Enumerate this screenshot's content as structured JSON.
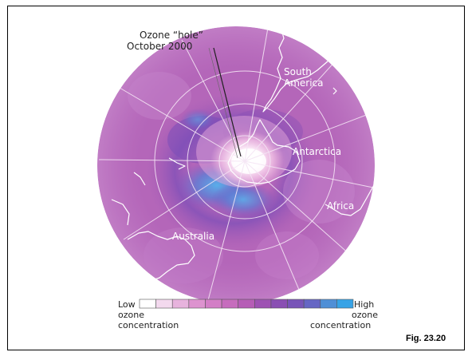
{
  "figure_label": "Fig. 23.20",
  "callout": {
    "line1": "Ozone “hole”",
    "line2": "October 2000"
  },
  "regions": {
    "south_america_1": "South",
    "south_america_2": "America",
    "antarctica": "Antarctica",
    "africa": "Africa",
    "australia": "Australia"
  },
  "legend": {
    "low": "Low",
    "high": "High",
    "ozone_left": "ozone",
    "ozone_right": "ozone",
    "concentration_left": "concentration",
    "concentration_right": "concentration",
    "colors": [
      "#ffffff",
      "#f3d9ee",
      "#e7b3dd",
      "#dd93cf",
      "#d37ec6",
      "#c66cbd",
      "#b65db6",
      "#9e52b3",
      "#8a4fb3",
      "#7854b8",
      "#6666c4",
      "#4f8fd6",
      "#37a3e6"
    ]
  }
}
